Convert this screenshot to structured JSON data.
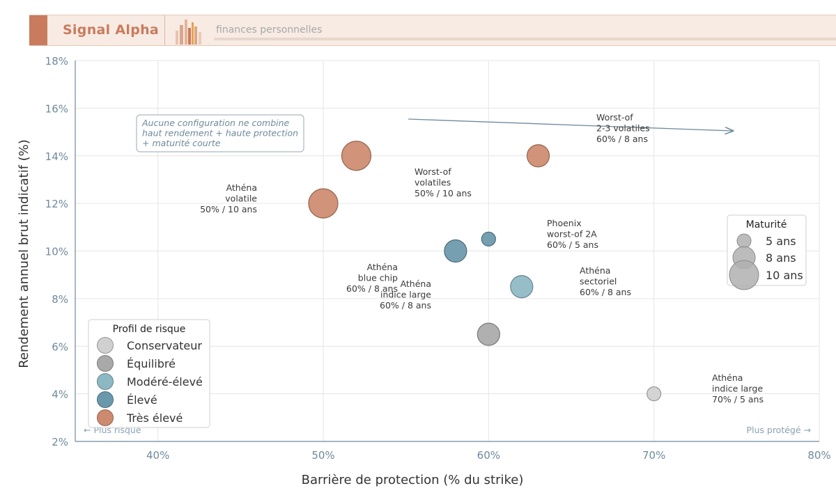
{
  "header": {
    "brand": "Signal Alpha",
    "tagline": "finances personnelles",
    "brand_color": "#c97b5d"
  },
  "chart_data": {
    "type": "scatter",
    "xlabel": "Barrière de protection (% du strike)",
    "ylabel": "Rendement annuel brut indicatif (%)",
    "xlim": [
      35,
      80
    ],
    "ylim": [
      2,
      18
    ],
    "x_ticks": [
      40,
      50,
      60,
      70,
      80
    ],
    "y_ticks": [
      2,
      4,
      6,
      8,
      10,
      12,
      14,
      16,
      18
    ],
    "tick_suffix": "%",
    "grid": true,
    "points": [
      {
        "x": 70,
        "y": 4,
        "maturity": 5,
        "risk": "Conservateur",
        "label": [
          "Athéna",
          "indice large",
          "70% / 5 ans"
        ]
      },
      {
        "x": 60,
        "y": 6.5,
        "maturity": 8,
        "risk": "Équilibré",
        "label": [
          "Athéna",
          "indice large",
          "60% / 8 ans"
        ]
      },
      {
        "x": 62,
        "y": 8.5,
        "maturity": 8,
        "risk": "Modéré-élevé",
        "label": [
          "Athéna",
          "sectoriel",
          "60% / 8 ans"
        ]
      },
      {
        "x": 58,
        "y": 10,
        "maturity": 8,
        "risk": "Élevé",
        "label": [
          "Athéna",
          "blue chip",
          "60% / 8 ans"
        ]
      },
      {
        "x": 60,
        "y": 10.5,
        "maturity": 5,
        "risk": "Élevé",
        "label": [
          "Phoenix",
          "worst-of 2A",
          "60% / 5 ans"
        ]
      },
      {
        "x": 50,
        "y": 12,
        "maturity": 10,
        "risk": "Très élevé",
        "label": [
          "Athéna",
          "volatile",
          "50% / 10 ans"
        ]
      },
      {
        "x": 52,
        "y": 14,
        "maturity": 10,
        "risk": "Très élevé",
        "label": [
          "Worst-of",
          "volatiles",
          "50% / 10 ans"
        ]
      },
      {
        "x": 63,
        "y": 14,
        "maturity": 8,
        "risk": "Très élevé",
        "label": [
          "Worst-of",
          "2-3 volatiles",
          "60% / 8 ans"
        ]
      }
    ],
    "risk_legend": {
      "title": "Profil de risque",
      "placement": "bottom-left",
      "items": [
        {
          "name": "Conservateur",
          "color": "#d0d0d0"
        },
        {
          "name": "Équilibré",
          "color": "#a9a9a9"
        },
        {
          "name": "Modéré-élevé",
          "color": "#8cb8c4"
        },
        {
          "name": "Élevé",
          "color": "#6a98ab"
        },
        {
          "name": "Très élevé",
          "color": "#cd8a6e"
        }
      ]
    },
    "size_legend": {
      "title": "Maturité",
      "placement": "right",
      "items": [
        {
          "maturity": 5,
          "label": "5 ans"
        },
        {
          "maturity": 8,
          "label": "8 ans"
        },
        {
          "maturity": 10,
          "label": "10 ans"
        }
      ]
    },
    "annotation": [
      "Aucune configuration ne combine",
      "haut rendement + haute protection",
      "+ maturité courte"
    ],
    "direction_left": "← Plus risqué",
    "direction_right": "Plus protégé →"
  }
}
